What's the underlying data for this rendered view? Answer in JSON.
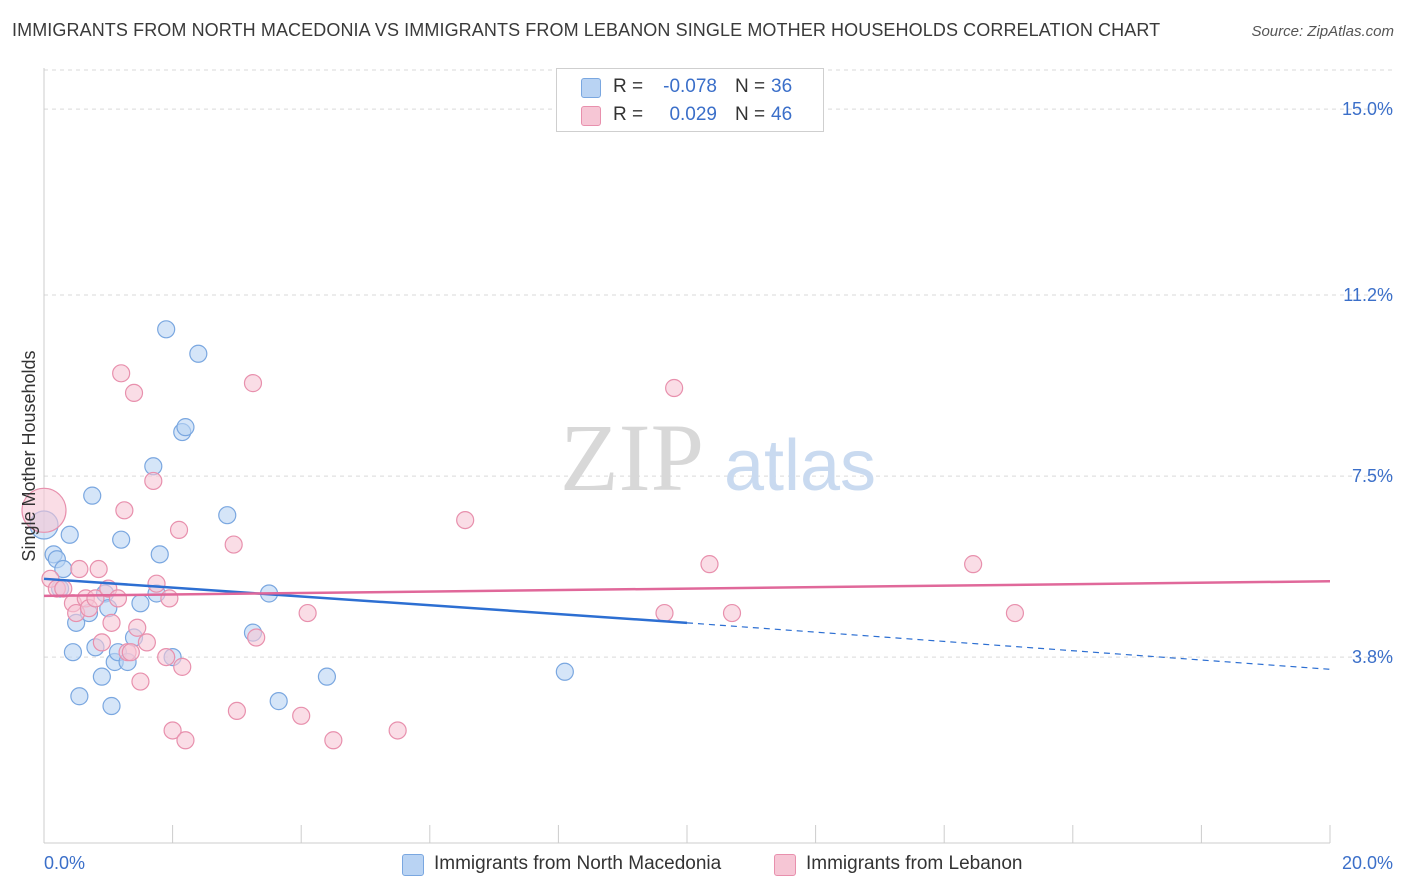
{
  "header": {
    "title": "IMMIGRANTS FROM NORTH MACEDONIA VS IMMIGRANTS FROM LEBANON SINGLE MOTHER HOUSEHOLDS CORRELATION CHART",
    "source": "Source: ZipAtlas.com"
  },
  "watermark": {
    "zip": "ZIP",
    "atlas": "atlas"
  },
  "colors": {
    "blue_fill": "#b9d3f3",
    "blue_stroke": "#7aa7e0",
    "blue_line": "#2d6fd2",
    "pink_fill": "#f6c6d5",
    "pink_stroke": "#e890ad",
    "pink_line": "#e0689a",
    "tick_label": "#3b6fc9",
    "grid": "#d9d9d9"
  },
  "legend": {
    "rows": [
      {
        "r_label": "R =",
        "r_value": "-0.078",
        "n_label": "N =",
        "n_value": "36",
        "color": "blue"
      },
      {
        "r_label": "R =",
        "r_value": "0.029",
        "n_label": "N =",
        "n_value": "46",
        "color": "pink"
      }
    ]
  },
  "chart_data": {
    "type": "scatter",
    "title": "IMMIGRANTS FROM NORTH MACEDONIA VS IMMIGRANTS FROM LEBANON SINGLE MOTHER HOUSEHOLDS CORRELATION CHART",
    "xlabel": "",
    "ylabel": "Single Mother Households",
    "xlim": [
      0,
      20
    ],
    "ylim": [
      0,
      15.8
    ],
    "x_tick_labels": [
      {
        "value": 0,
        "label": "0.0%"
      },
      {
        "value": 20,
        "label": "20.0%"
      }
    ],
    "y_tick_labels": [
      {
        "value": 3.8,
        "label": "3.8%"
      },
      {
        "value": 7.5,
        "label": "7.5%"
      },
      {
        "value": 11.2,
        "label": "11.2%"
      },
      {
        "value": 15.0,
        "label": "15.0%"
      }
    ],
    "x_minor_ticks": [
      0,
      2,
      4,
      6,
      8,
      10,
      12,
      14,
      16,
      18,
      20
    ],
    "y_gridlines": [
      3.8,
      7.5,
      11.2,
      15.0,
      15.8
    ],
    "grid": true,
    "legend_position": "top-center",
    "series": [
      {
        "name": "Immigrants from North Macedonia",
        "color": "blue",
        "points": [
          {
            "x": 0.0,
            "y": 6.5,
            "r": 14
          },
          {
            "x": 0.15,
            "y": 5.9
          },
          {
            "x": 0.2,
            "y": 5.8
          },
          {
            "x": 0.25,
            "y": 5.2
          },
          {
            "x": 0.3,
            "y": 5.6
          },
          {
            "x": 0.4,
            "y": 6.3
          },
          {
            "x": 0.45,
            "y": 3.9
          },
          {
            "x": 0.5,
            "y": 4.5
          },
          {
            "x": 0.55,
            "y": 3.0
          },
          {
            "x": 0.7,
            "y": 4.7
          },
          {
            "x": 0.75,
            "y": 7.1
          },
          {
            "x": 0.8,
            "y": 4.0
          },
          {
            "x": 0.9,
            "y": 3.4
          },
          {
            "x": 0.95,
            "y": 5.1
          },
          {
            "x": 1.05,
            "y": 2.8
          },
          {
            "x": 1.1,
            "y": 3.7
          },
          {
            "x": 1.15,
            "y": 3.9
          },
          {
            "x": 1.2,
            "y": 6.2
          },
          {
            "x": 1.3,
            "y": 3.7
          },
          {
            "x": 1.4,
            "y": 4.2
          },
          {
            "x": 1.5,
            "y": 4.9
          },
          {
            "x": 1.7,
            "y": 7.7
          },
          {
            "x": 1.75,
            "y": 5.1
          },
          {
            "x": 1.8,
            "y": 5.9
          },
          {
            "x": 1.9,
            "y": 10.5
          },
          {
            "x": 2.0,
            "y": 3.8
          },
          {
            "x": 2.15,
            "y": 8.4
          },
          {
            "x": 2.2,
            "y": 8.5
          },
          {
            "x": 2.4,
            "y": 10.0
          },
          {
            "x": 2.85,
            "y": 6.7
          },
          {
            "x": 3.25,
            "y": 4.3
          },
          {
            "x": 3.5,
            "y": 5.1
          },
          {
            "x": 3.65,
            "y": 2.9
          },
          {
            "x": 4.4,
            "y": 3.4
          },
          {
            "x": 8.1,
            "y": 3.5
          },
          {
            "x": 1.0,
            "y": 4.8
          }
        ]
      },
      {
        "name": "Immigrants from Lebanon",
        "color": "pink",
        "points": [
          {
            "x": 0.0,
            "y": 6.8,
            "r": 22
          },
          {
            "x": 0.1,
            "y": 5.4
          },
          {
            "x": 0.2,
            "y": 5.2
          },
          {
            "x": 0.3,
            "y": 5.2
          },
          {
            "x": 0.45,
            "y": 4.9
          },
          {
            "x": 0.5,
            "y": 4.7
          },
          {
            "x": 0.55,
            "y": 5.6
          },
          {
            "x": 0.65,
            "y": 5.0
          },
          {
            "x": 0.7,
            "y": 4.8
          },
          {
            "x": 0.8,
            "y": 5.0
          },
          {
            "x": 0.85,
            "y": 5.6
          },
          {
            "x": 0.9,
            "y": 4.1
          },
          {
            "x": 1.0,
            "y": 5.2
          },
          {
            "x": 1.05,
            "y": 4.5
          },
          {
            "x": 1.15,
            "y": 5.0
          },
          {
            "x": 1.2,
            "y": 9.6
          },
          {
            "x": 1.25,
            "y": 6.8
          },
          {
            "x": 1.3,
            "y": 3.9
          },
          {
            "x": 1.4,
            "y": 9.2
          },
          {
            "x": 1.45,
            "y": 4.4
          },
          {
            "x": 1.5,
            "y": 3.3
          },
          {
            "x": 1.6,
            "y": 4.1
          },
          {
            "x": 1.7,
            "y": 7.4
          },
          {
            "x": 1.75,
            "y": 5.3
          },
          {
            "x": 1.9,
            "y": 3.8
          },
          {
            "x": 1.95,
            "y": 5.0
          },
          {
            "x": 2.0,
            "y": 2.3
          },
          {
            "x": 2.1,
            "y": 6.4
          },
          {
            "x": 2.15,
            "y": 3.6
          },
          {
            "x": 2.2,
            "y": 2.1
          },
          {
            "x": 2.95,
            "y": 6.1
          },
          {
            "x": 3.0,
            "y": 2.7
          },
          {
            "x": 3.3,
            "y": 4.2
          },
          {
            "x": 3.25,
            "y": 9.4
          },
          {
            "x": 4.0,
            "y": 2.6
          },
          {
            "x": 4.1,
            "y": 4.7
          },
          {
            "x": 4.5,
            "y": 2.1
          },
          {
            "x": 5.5,
            "y": 2.3
          },
          {
            "x": 6.55,
            "y": 6.6
          },
          {
            "x": 9.65,
            "y": 4.7
          },
          {
            "x": 9.8,
            "y": 9.3
          },
          {
            "x": 10.35,
            "y": 5.7
          },
          {
            "x": 10.7,
            "y": 4.7
          },
          {
            "x": 14.45,
            "y": 5.7
          },
          {
            "x": 15.1,
            "y": 4.7
          },
          {
            "x": 1.35,
            "y": 3.9
          }
        ]
      }
    ],
    "trend_lines": [
      {
        "series": "Immigrants from North Macedonia",
        "x1": 0,
        "y1": 5.4,
        "x2": 10.0,
        "y2": 4.5,
        "dashed_to_x": 20,
        "dashed_to_y": 3.55
      },
      {
        "series": "Immigrants from Lebanon",
        "x1": 0,
        "y1": 5.05,
        "x2": 20,
        "y2": 5.35
      }
    ]
  }
}
